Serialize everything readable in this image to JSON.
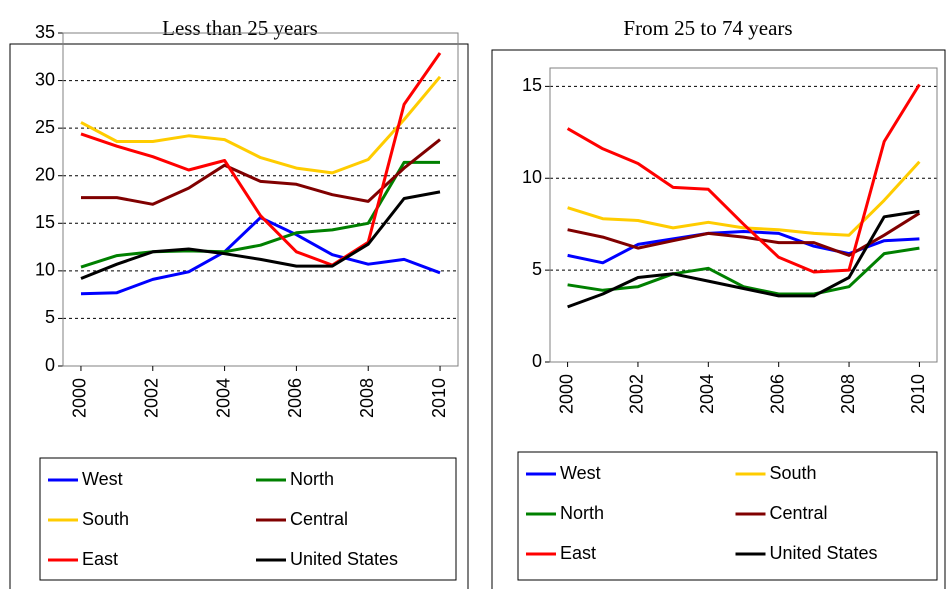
{
  "chart_data": [
    {
      "type": "line",
      "title": "Less than 25 years",
      "x": [
        2000,
        2001,
        2002,
        2003,
        2004,
        2005,
        2006,
        2007,
        2008,
        2009,
        2010
      ],
      "xlim": [
        1999.5,
        2010.5
      ],
      "xticks": [
        2000,
        2002,
        2004,
        2006,
        2008,
        2010
      ],
      "ylim": [
        0,
        35
      ],
      "yticks": [
        0,
        5,
        10,
        15,
        20,
        25,
        30,
        35
      ],
      "grid": true,
      "series": [
        {
          "name": "West",
          "color": "#0000ff",
          "values": [
            7.6,
            7.7,
            9.1,
            9.9,
            12,
            15.6,
            13.8,
            11.7,
            10.7,
            11.2,
            9.8
          ]
        },
        {
          "name": "North",
          "color": "#008000",
          "values": [
            10.4,
            11.6,
            12,
            12.1,
            12,
            12.7,
            14,
            14.3,
            15,
            21.4,
            21.4
          ]
        },
        {
          "name": "South",
          "color": "#ffcc00",
          "values": [
            25.6,
            23.6,
            23.6,
            24.2,
            23.8,
            21.9,
            20.8,
            20.3,
            21.7,
            25.9,
            30.4
          ]
        },
        {
          "name": "Central",
          "color": "#800000",
          "values": [
            17.7,
            17.7,
            17,
            18.7,
            21.1,
            19.4,
            19.1,
            18,
            17.3,
            20.8,
            23.8
          ]
        },
        {
          "name": "East",
          "color": "#ff0000",
          "values": [
            24.4,
            23.1,
            22,
            20.6,
            21.6,
            15.8,
            12,
            10.6,
            13,
            27.5,
            32.9
          ]
        },
        {
          "name": "United States",
          "color": "#000000",
          "values": [
            9.2,
            10.7,
            12,
            12.3,
            11.8,
            11.2,
            10.5,
            10.5,
            12.8,
            17.6,
            18.3
          ]
        }
      ]
    },
    {
      "type": "line",
      "title": "From 25 to 74 years",
      "x": [
        2000,
        2001,
        2002,
        2003,
        2004,
        2005,
        2006,
        2007,
        2008,
        2009,
        2010
      ],
      "xlim": [
        1999.5,
        2010.5
      ],
      "xticks": [
        2000,
        2002,
        2004,
        2006,
        2008,
        2010
      ],
      "ylim": [
        0,
        16
      ],
      "yticks": [
        0,
        5,
        10,
        15
      ],
      "grid": true,
      "series": [
        {
          "name": "West",
          "color": "#0000ff",
          "values": [
            5.8,
            5.4,
            6.4,
            6.7,
            7,
            7.1,
            7,
            6.3,
            5.9,
            6.6,
            6.7
          ]
        },
        {
          "name": "South",
          "color": "#ffcc00",
          "values": [
            8.4,
            7.8,
            7.7,
            7.3,
            7.6,
            7.3,
            7.2,
            7,
            6.9,
            8.8,
            10.9
          ]
        },
        {
          "name": "North",
          "color": "#008000",
          "values": [
            4.2,
            3.9,
            4.1,
            4.8,
            5.1,
            4.1,
            3.7,
            3.7,
            4.1,
            5.9,
            6.2
          ]
        },
        {
          "name": "Central",
          "color": "#800000",
          "values": [
            7.2,
            6.8,
            6.2,
            6.6,
            7,
            6.8,
            6.5,
            6.5,
            5.8,
            6.9,
            8.1
          ]
        },
        {
          "name": "East",
          "color": "#ff0000",
          "values": [
            12.7,
            11.6,
            10.8,
            9.5,
            9.4,
            7.5,
            5.7,
            4.9,
            5,
            12,
            15.1
          ]
        },
        {
          "name": "United States",
          "color": "#000000",
          "values": [
            3,
            3.7,
            4.6,
            4.8,
            4.4,
            4,
            3.6,
            3.6,
            4.6,
            7.9,
            8.2
          ]
        }
      ]
    }
  ]
}
